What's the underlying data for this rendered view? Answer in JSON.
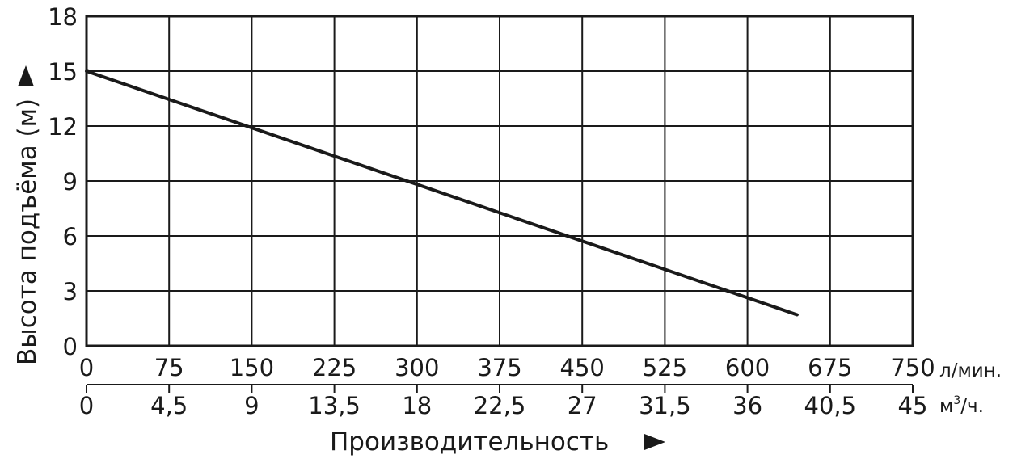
{
  "chart_data": {
    "type": "line",
    "ylabel": "Высота подъёма (м)",
    "xlabel": "Производительность",
    "ylim": [
      0,
      18
    ],
    "y_ticks": [
      "0",
      "3",
      "6",
      "9",
      "12",
      "15",
      "18"
    ],
    "x_ticks_lmin": [
      "0",
      "75",
      "150",
      "225",
      "300",
      "375",
      "450",
      "525",
      "600",
      "675",
      "750"
    ],
    "x_ticks_m3h": [
      "0",
      "4,5",
      "9",
      "13,5",
      "18",
      "22,5",
      "27",
      "31,5",
      "36",
      "40,5",
      "45"
    ],
    "unit_lmin": "л/мин.",
    "unit_m3h_base": "м",
    "unit_m3h_sup": "3",
    "unit_m3h_rest": "/ч.",
    "xlim_lmin": [
      0,
      750
    ],
    "grid": true,
    "series": [
      {
        "x": [
          0,
          645
        ],
        "y": [
          15,
          1.7
        ]
      }
    ],
    "colors": {
      "line": "#1a1a1a",
      "grid": "#1a1a1a"
    }
  }
}
